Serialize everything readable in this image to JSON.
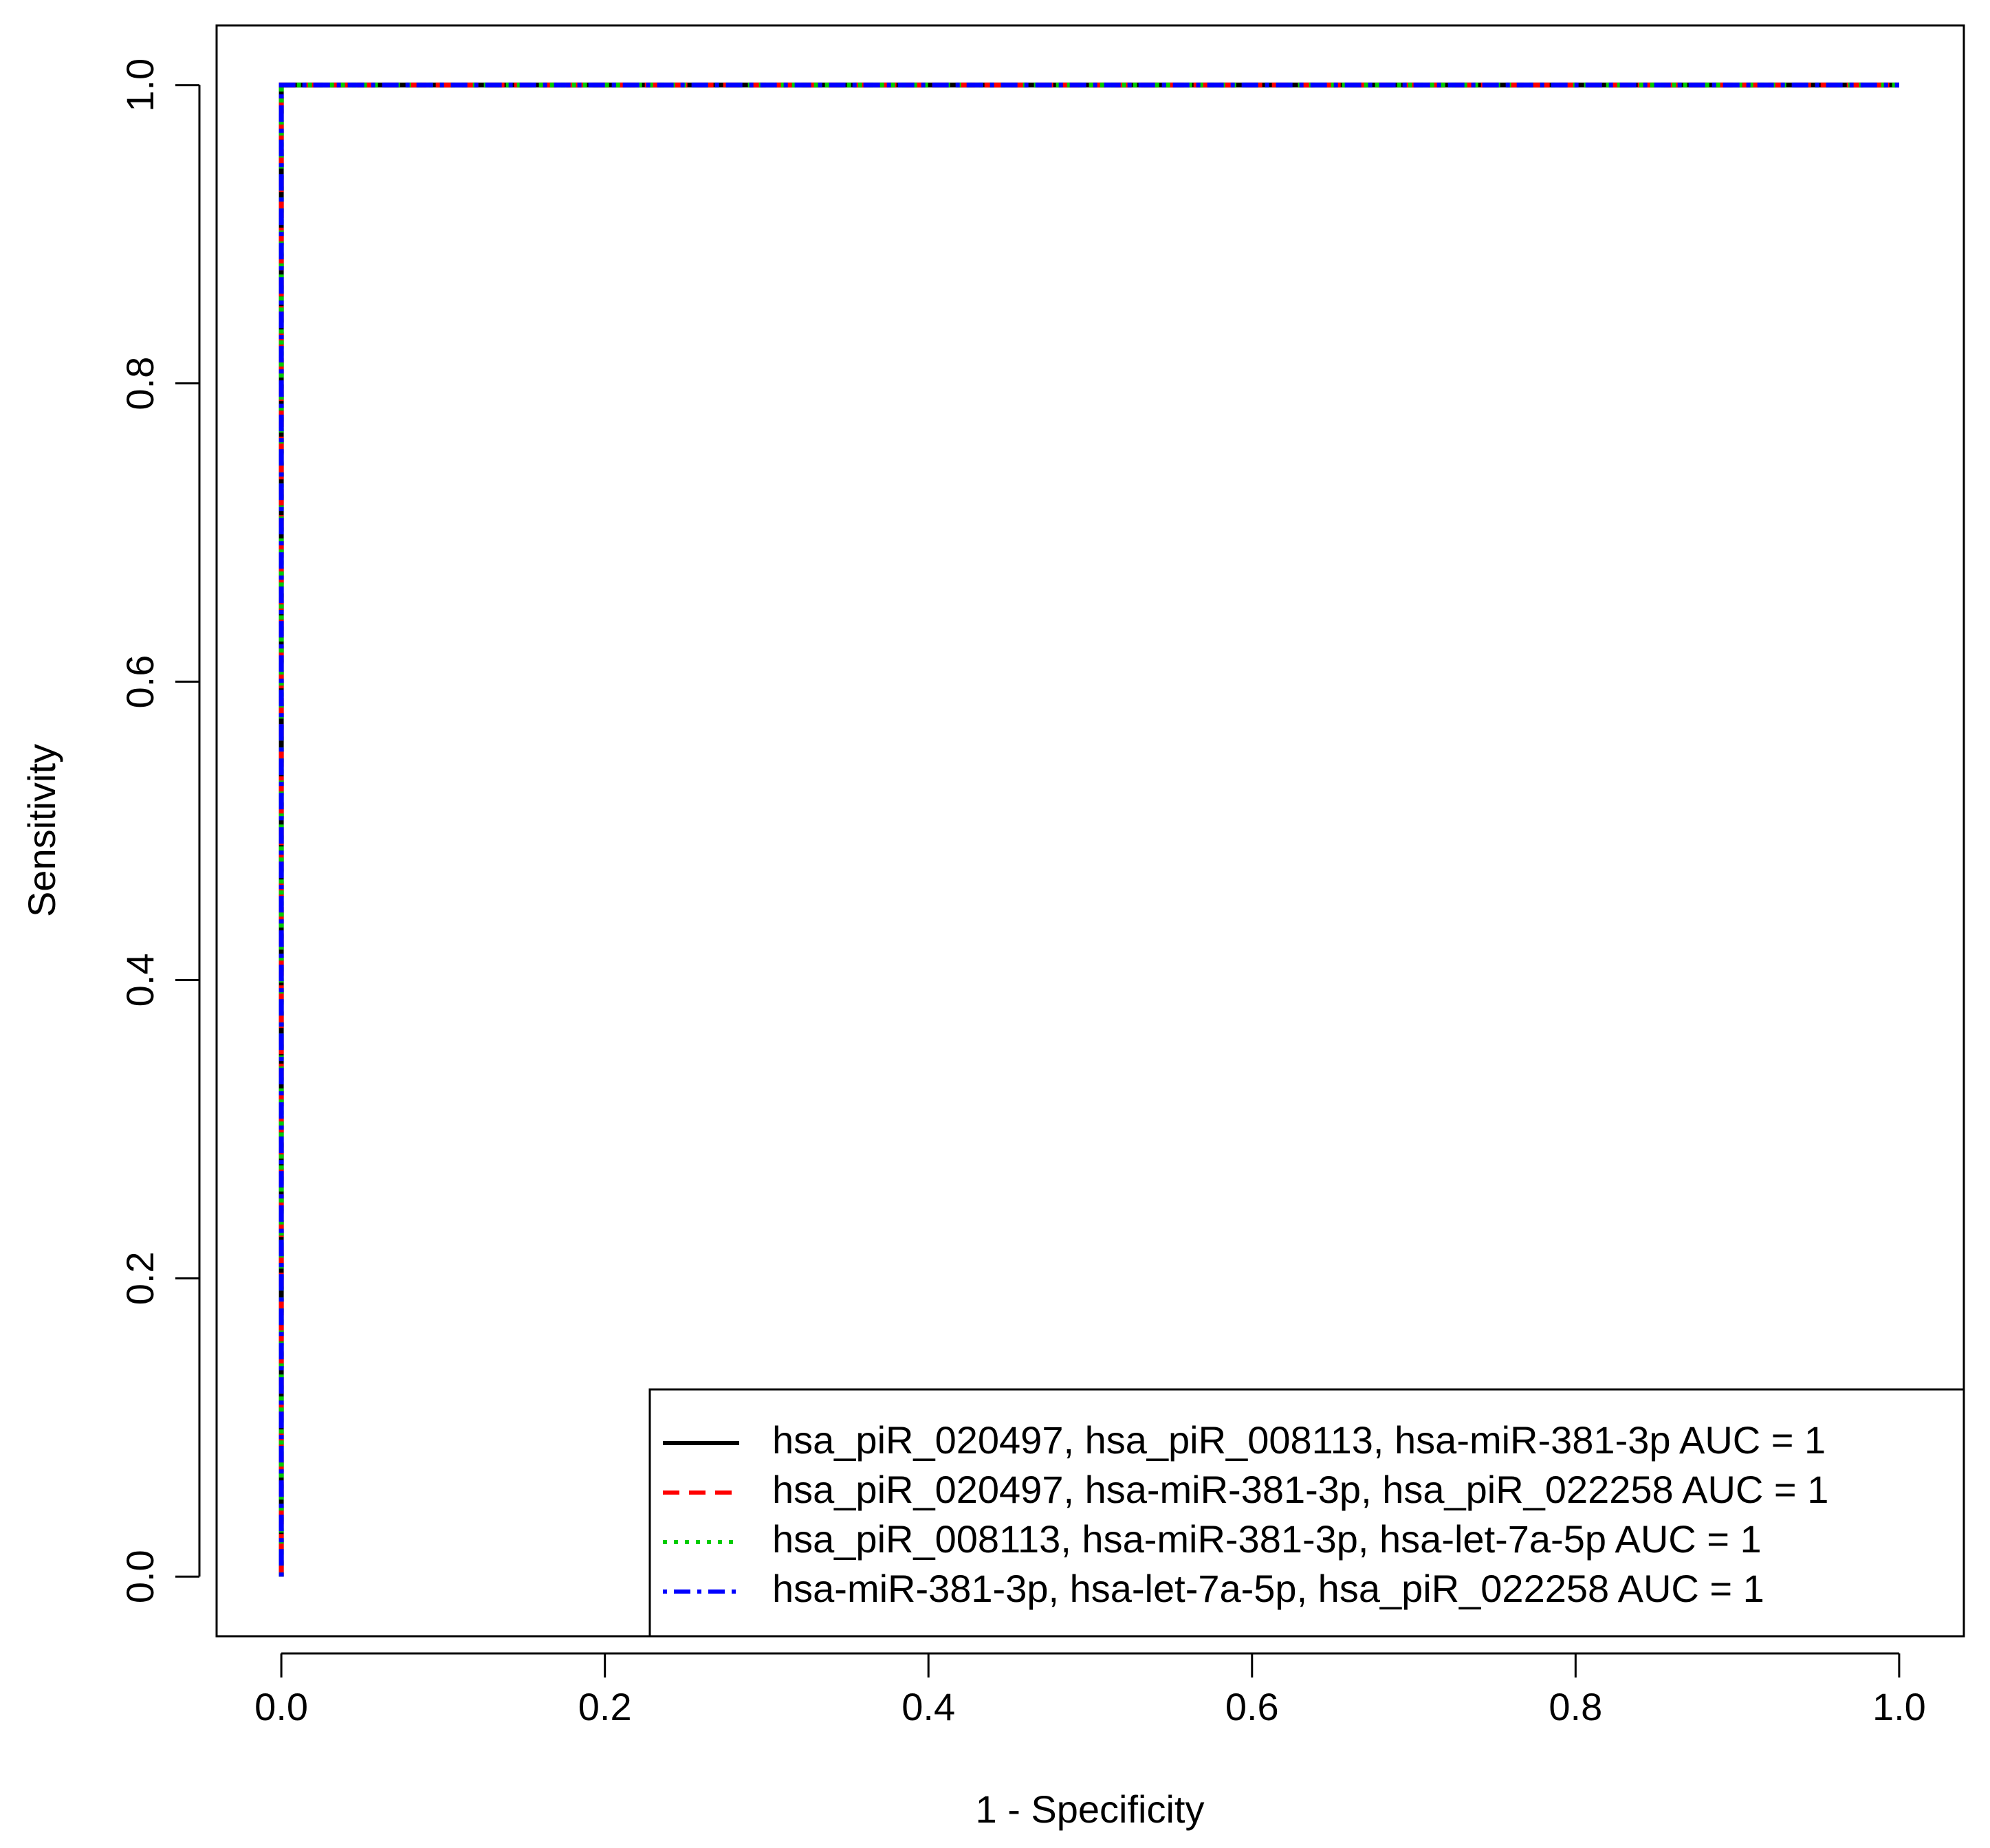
{
  "chart_data": {
    "type": "line",
    "x_label": "1 - Specificity",
    "y_label": "Sensitivity",
    "x": [
      0,
      0,
      1
    ],
    "series": [
      {
        "name": "hsa_piR_020497, hsa_piR_008113, hsa-miR-381-3p AUC =  1",
        "color": "#000000",
        "dash": "solid",
        "values": [
          0,
          1,
          1
        ]
      },
      {
        "name": "hsa_piR_020497, hsa-miR-381-3p, hsa_piR_022258 AUC =  1",
        "color": "#ff0000",
        "dash": "dashed",
        "values": [
          0,
          1,
          1
        ]
      },
      {
        "name": "hsa_piR_008113, hsa-miR-381-3p, hsa-let-7a-5p AUC =  1",
        "color": "#00cd00",
        "dash": "dotted",
        "values": [
          0,
          1,
          1
        ]
      },
      {
        "name": "hsa-miR-381-3p, hsa-let-7a-5p, hsa_piR_022258 AUC =  1",
        "color": "#0000ff",
        "dash": "dotdash",
        "values": [
          0,
          1,
          1
        ]
      }
    ],
    "xlim": [
      -0.04,
      1.04
    ],
    "ylim": [
      -0.04,
      1.04
    ],
    "xticks": [
      {
        "value": 0,
        "label": "0.0"
      },
      {
        "value": 0.2,
        "label": "0.2"
      },
      {
        "value": 0.4,
        "label": "0.4"
      },
      {
        "value": 0.6,
        "label": "0.6"
      },
      {
        "value": 0.8,
        "label": "0.8"
      },
      {
        "value": 1,
        "label": "1.0"
      }
    ],
    "yticks": [
      {
        "value": 0,
        "label": "0.0"
      },
      {
        "value": 0.2,
        "label": "0.2"
      },
      {
        "value": 0.4,
        "label": "0.4"
      },
      {
        "value": 0.6,
        "label": "0.6"
      },
      {
        "value": 0.8,
        "label": "0.8"
      },
      {
        "value": 1,
        "label": "1.0"
      }
    ],
    "legend": "bottom-right"
  }
}
